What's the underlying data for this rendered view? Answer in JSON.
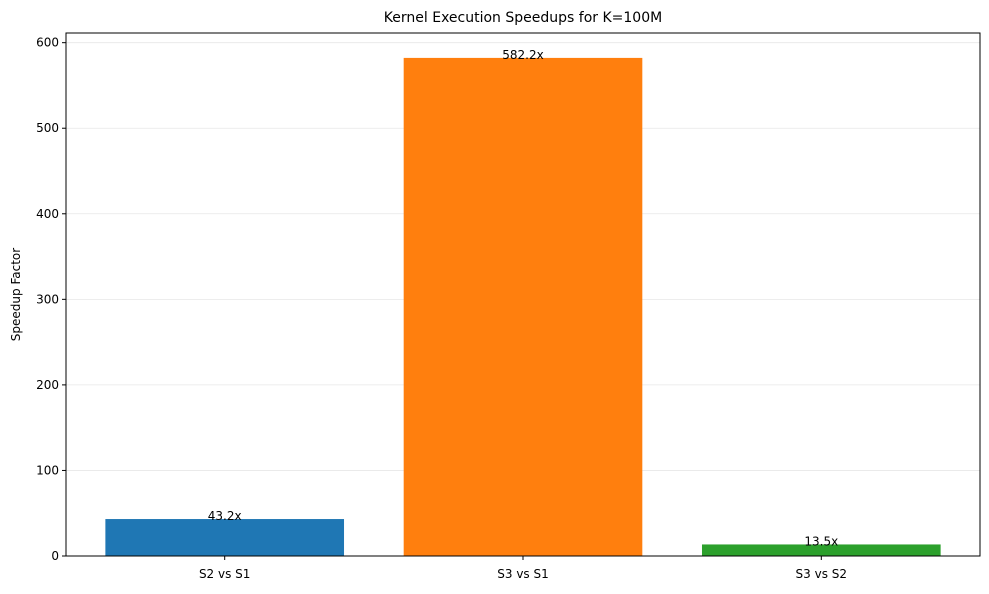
{
  "chart_data": {
    "type": "bar",
    "title": "Kernel Execution Speedups for K=100M",
    "xlabel": "",
    "ylabel": "Speedup Factor",
    "categories": [
      "S2 vs S1",
      "S3 vs S1",
      "S3 vs S2"
    ],
    "values": [
      43.2,
      582.2,
      13.5
    ],
    "value_labels": [
      "43.2x",
      "582.2x",
      "13.5x"
    ],
    "colors": [
      "#1f77b4",
      "#ff7f0e",
      "#2ca02c"
    ],
    "ylim": [
      0,
      611.31
    ],
    "yticks": [
      0,
      100,
      200,
      300,
      400,
      500,
      600
    ],
    "grid": "y-axis",
    "legend": "none"
  }
}
